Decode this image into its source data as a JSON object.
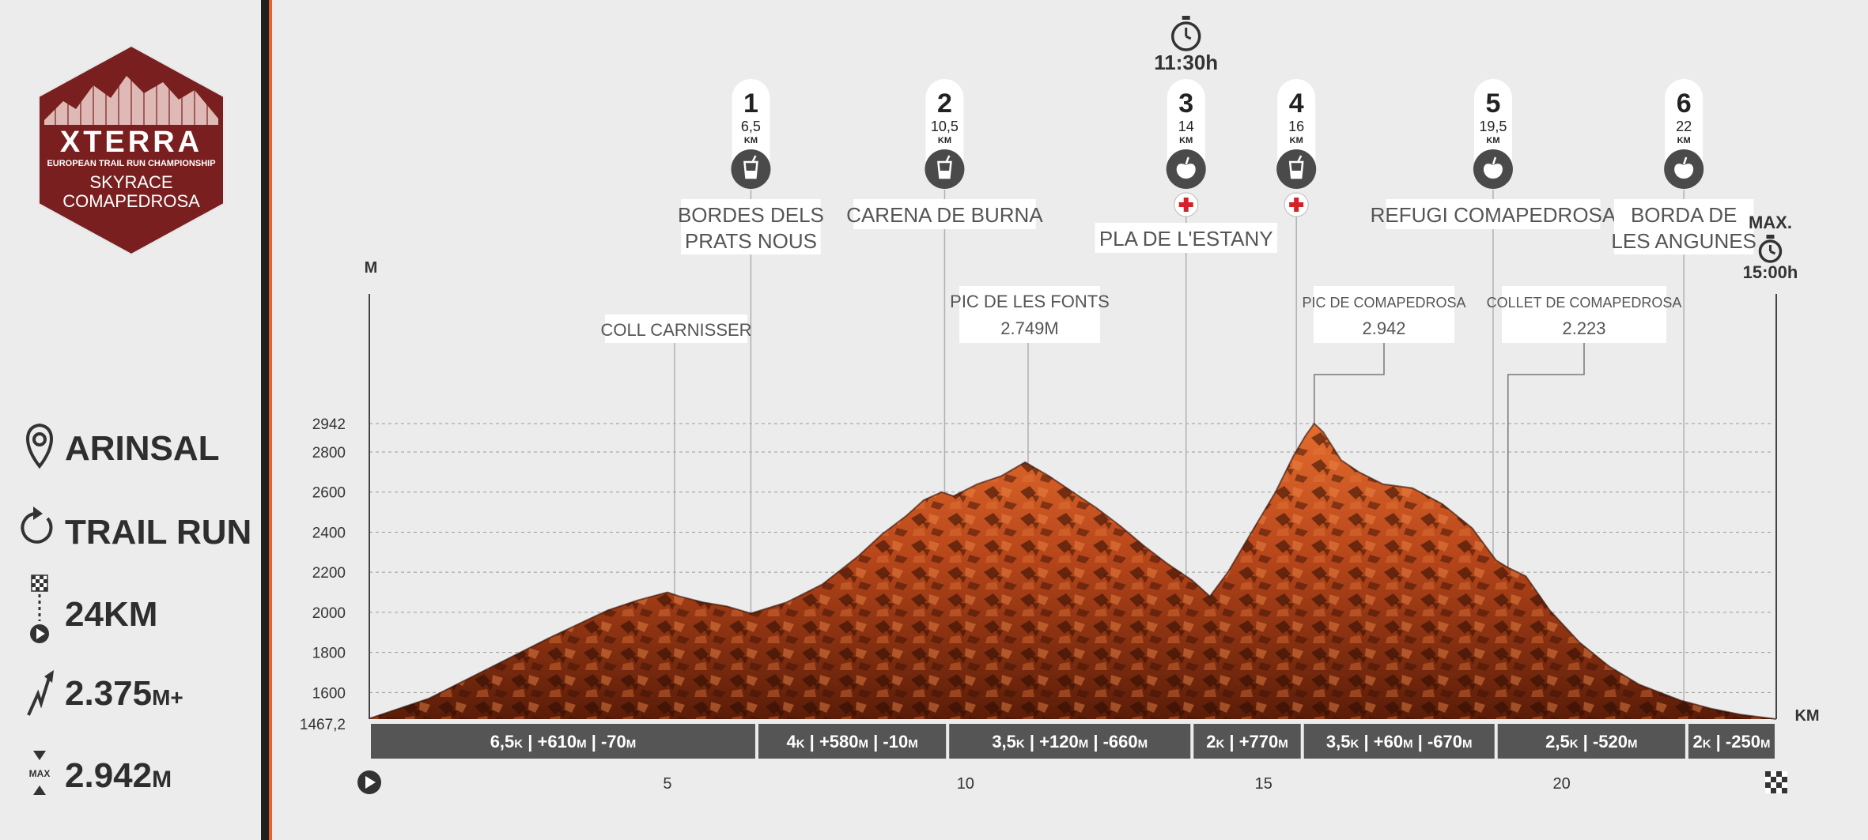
{
  "logo": {
    "brand": "XTERRA",
    "line1": "EUROPEAN TRAIL RUN CHAMPIONSHIP",
    "line2": "SKYRACE",
    "line3": "COMAPEDROSA"
  },
  "sidebar": {
    "items": [
      {
        "icon": "location-pin-icon",
        "label": "ARINSAL"
      },
      {
        "icon": "refresh-icon",
        "label": "TRAIL RUN"
      },
      {
        "icon": "start-finish-icon",
        "label": "24KM"
      },
      {
        "icon": "elevation-gain-icon",
        "value": "2.375",
        "unit": "M+"
      },
      {
        "icon": "max-altitude-icon",
        "icon_label": "MAX",
        "value": "2.942",
        "unit": "M"
      }
    ]
  },
  "colors": {
    "accent": "#e8602c",
    "terrain_dark": "#3a1306",
    "terrain_mid": "#a8400f",
    "terrain_light": "#e06a2c",
    "segment_bar": "#555555",
    "sidebar_divider": "#1f1f1f"
  },
  "cutoffs": [
    {
      "label": "",
      "time": "11:30h",
      "km": 13.7
    },
    {
      "label": "MAX.",
      "time": "15:00h",
      "km": 23.5
    }
  ],
  "aid_stations": [
    {
      "number": "1",
      "km_label": "6,5",
      "unit": "KM",
      "km": 6.4,
      "icon": "drink-icon",
      "medical": false,
      "name_lines": [
        "BORDES DELS",
        "PRATS NOUS"
      ]
    },
    {
      "number": "2",
      "km_label": "10,5",
      "unit": "KM",
      "km": 9.65,
      "icon": "drink-icon",
      "medical": false,
      "name_lines": [
        "CARENA DE BURNA"
      ]
    },
    {
      "number": "3",
      "km_label": "14",
      "unit": "KM",
      "km": 13.7,
      "icon": "apple-icon",
      "medical": true,
      "name_lines": [
        "PLA DE L'ESTANY"
      ]
    },
    {
      "number": "4",
      "km_label": "16",
      "unit": "KM",
      "km": 15.55,
      "icon": "drink-icon",
      "medical": true,
      "name_lines": []
    },
    {
      "number": "5",
      "km_label": "19,5",
      "unit": "KM",
      "km": 18.85,
      "icon": "apple-icon",
      "medical": false,
      "name_lines": [
        "REFUGI COMAPEDROSA"
      ]
    },
    {
      "number": "6",
      "km_label": "22",
      "unit": "KM",
      "km": 22.05,
      "icon": "apple-icon",
      "medical": false,
      "name_lines": [
        "BORDA DE",
        "LES ANGUNES"
      ]
    }
  ],
  "landmarks": [
    {
      "name": "COLL CARNISSER",
      "alt_label": "",
      "km": 5.12
    },
    {
      "name": "PIC DE LES FONTS",
      "alt_label": "2.749M",
      "km": 11.05
    },
    {
      "name": "PIC DE COMAPEDROSA",
      "alt_label": "2.942",
      "km": 15.85
    },
    {
      "name": "COLLET DE COMAPEDROSA",
      "alt_label": "2.223",
      "km": 19.1
    }
  ],
  "chart_data": {
    "type": "area",
    "title": "",
    "xlabel": "KM",
    "ylabel": "M",
    "xlim": [
      0,
      23.6
    ],
    "ylim": [
      1467.2,
      2942
    ],
    "x_ticks": [
      5,
      10,
      15,
      20
    ],
    "y_ticks": [
      1467.2,
      1600,
      1800,
      2000,
      2200,
      2400,
      2600,
      2800,
      2942
    ],
    "y_tick_labels": [
      "1467,2",
      "1600",
      "1800",
      "2000",
      "2200",
      "2400",
      "2600",
      "2800",
      "2942"
    ],
    "grid": true,
    "series": [
      {
        "x": [
          0,
          1.0,
          2.0,
          3.0,
          4.0,
          4.5,
          5.0,
          5.2,
          5.6,
          6.0,
          6.4,
          7.0,
          7.6,
          8.2,
          8.6,
          9.0,
          9.3,
          9.6,
          9.8,
          10.2,
          10.6,
          11.0,
          11.4,
          11.8,
          12.2,
          12.6,
          13.0,
          13.4,
          13.8,
          14.1,
          14.4,
          14.8,
          15.2,
          15.5,
          15.7,
          15.85,
          16.0,
          16.3,
          16.6,
          17.0,
          17.5,
          18.0,
          18.5,
          18.9,
          19.1,
          19.4,
          19.8,
          20.3,
          20.8,
          21.3,
          22.0,
          22.5,
          23.0,
          23.6
        ],
        "y": [
          1470,
          1570,
          1720,
          1870,
          2010,
          2060,
          2100,
          2080,
          2050,
          2030,
          1995,
          2050,
          2140,
          2280,
          2390,
          2480,
          2560,
          2600,
          2580,
          2640,
          2680,
          2749,
          2680,
          2600,
          2520,
          2430,
          2330,
          2240,
          2160,
          2080,
          2200,
          2400,
          2600,
          2780,
          2880,
          2942,
          2900,
          2760,
          2700,
          2640,
          2620,
          2540,
          2420,
          2260,
          2223,
          2180,
          2010,
          1850,
          1730,
          1640,
          1560,
          1520,
          1490,
          1467.2
        ]
      }
    ],
    "segments": [
      {
        "from_km": 0,
        "to_km": 6.5,
        "dist": "6,5",
        "unit": "K",
        "parts": [
          {
            "value": "+610",
            "unit": "M"
          },
          {
            "value": "-70",
            "unit": "M"
          }
        ]
      },
      {
        "from_km": 6.5,
        "to_km": 9.7,
        "dist": "4",
        "unit": "K",
        "parts": [
          {
            "value": "+580",
            "unit": "M"
          },
          {
            "value": "-10",
            "unit": "M"
          }
        ]
      },
      {
        "from_km": 9.7,
        "to_km": 13.8,
        "dist": "3,5",
        "unit": "K",
        "parts": [
          {
            "value": "+120",
            "unit": "M"
          },
          {
            "value": "-660",
            "unit": "M"
          }
        ]
      },
      {
        "from_km": 13.8,
        "to_km": 15.65,
        "dist": "2",
        "unit": "K",
        "parts": [
          {
            "value": "+770",
            "unit": "M"
          }
        ]
      },
      {
        "from_km": 15.65,
        "to_km": 18.9,
        "dist": "3,5",
        "unit": "K",
        "parts": [
          {
            "value": "+60",
            "unit": "M"
          },
          {
            "value": "-670",
            "unit": "M"
          }
        ]
      },
      {
        "from_km": 18.9,
        "to_km": 22.1,
        "dist": "2,5",
        "unit": "K",
        "parts": [
          {
            "value": "-520",
            "unit": "M"
          }
        ]
      },
      {
        "from_km": 22.1,
        "to_km": 23.6,
        "dist": "2",
        "unit": "K",
        "parts": [
          {
            "value": "-250",
            "unit": "M"
          }
        ]
      }
    ]
  }
}
